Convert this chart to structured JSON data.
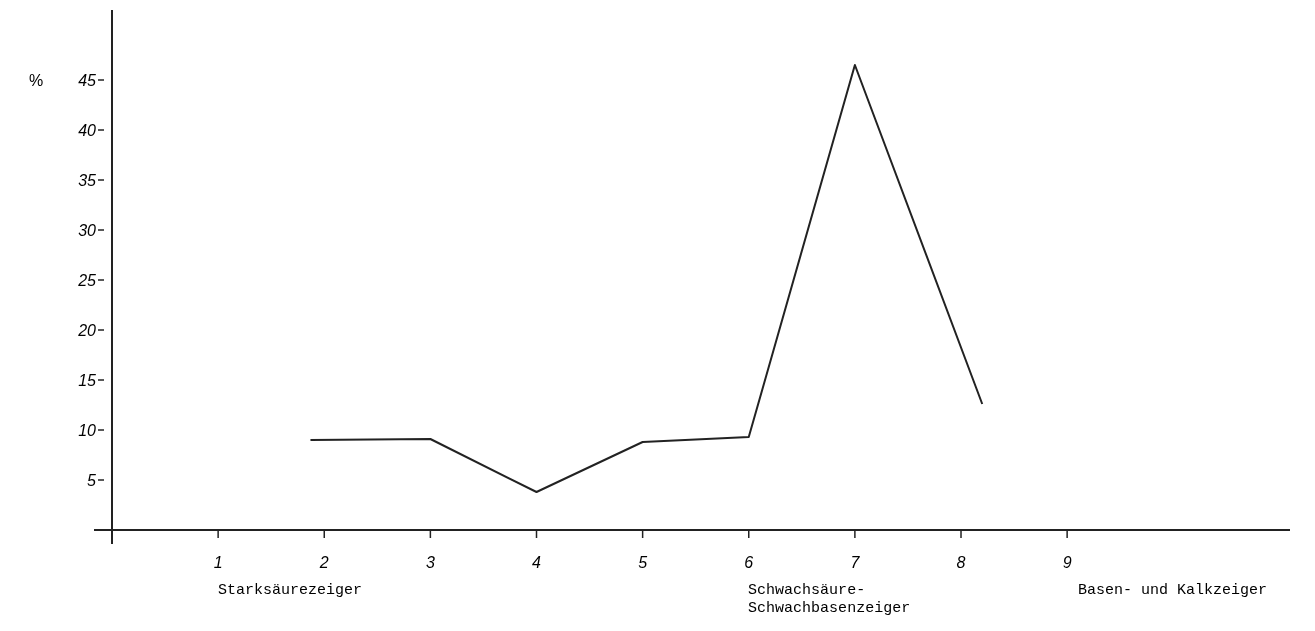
{
  "chart_data": {
    "type": "line",
    "ylabel": "%",
    "x": [
      1.87,
      3,
      4,
      5,
      6,
      7,
      8.2
    ],
    "series": [
      {
        "color": "#222222",
        "values": [
          9,
          9.1,
          3.8,
          8.8,
          9.3,
          46.5,
          12.6
        ]
      }
    ],
    "xlim": [
      0,
      11.1
    ],
    "xticks": [
      1,
      2,
      3,
      4,
      5,
      6,
      7,
      8,
      9
    ],
    "ylim": [
      0,
      52
    ],
    "yticks": [
      5,
      10,
      15,
      20,
      25,
      30,
      35,
      40,
      45
    ],
    "grid": false,
    "marker": "none",
    "line_style": "solid",
    "annotations": [
      "Starksäurezeiger",
      "Schwachsäure-\nSchwachbasenzeiger",
      "Basen- und Kalkzeiger"
    ]
  }
}
